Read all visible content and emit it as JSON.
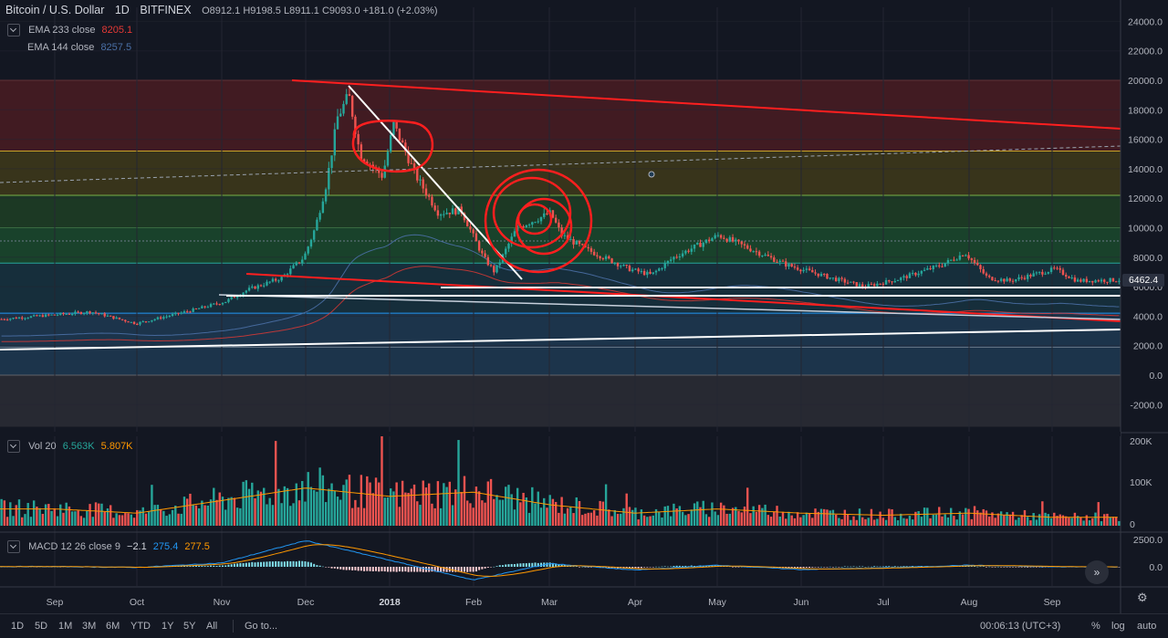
{
  "header": {
    "symbol": "Bitcoin / U.S. Dollar",
    "interval": "1D",
    "exchange": "BITFINEX",
    "ohlc": "O8912.1 H9198.5 L8911.1 C9093.0 +181.0 (+2.03%)"
  },
  "indicators": {
    "ema233": {
      "label": "EMA 233 close",
      "value": "8205.1",
      "color": "#e53935"
    },
    "ema144": {
      "label": "EMA 144 close",
      "value": "8257.5",
      "color": "#4a6fa5"
    },
    "vol": {
      "label": "Vol 20",
      "v1": "6.563K",
      "v2": "5.807K"
    },
    "macd": {
      "label": "MACD 12 26 close 9",
      "v1": "−2.1",
      "v2": "275.4",
      "v3": "277.5"
    }
  },
  "last_price": "6462.4",
  "colors": {
    "up": "#26a69a",
    "down": "#ef5350",
    "bg": "#131722",
    "grid": "#232632",
    "trend_red": "#ff1f1f",
    "trend_white": "#ffffff"
  },
  "price_axis": {
    "ticks": [
      "24000.0",
      "22000.0",
      "20000.0",
      "18000.0",
      "16000.0",
      "14000.0",
      "12000.0",
      "10000.0",
      "8000.0",
      "6000.0",
      "4000.0",
      "2000.0",
      "0.0",
      "-2000.0"
    ]
  },
  "vol_axis": {
    "ticks": [
      "200K",
      "100K",
      "0"
    ]
  },
  "macd_axis": {
    "ticks": [
      "2500.0",
      "0.0"
    ]
  },
  "time_axis": {
    "labels": [
      "Sep",
      "Oct",
      "Nov",
      "Dec",
      "2018",
      "Feb",
      "Mar",
      "Apr",
      "May",
      "Jun",
      "Jul",
      "Aug",
      "Sep"
    ]
  },
  "bottom_bar": {
    "timeframes": [
      "1D",
      "5D",
      "1M",
      "3M",
      "6M",
      "YTD",
      "1Y",
      "5Y",
      "All"
    ],
    "goto": "Go to...",
    "clock": "00:06:13 (UTC+3)",
    "percent": "%",
    "log": "log",
    "auto": "auto"
  },
  "icons": {
    "forward": "fast-forward-icon",
    "settings": "gear-icon",
    "collapse": "chevron-down-icon"
  },
  "chart_data": {
    "type": "candlestick",
    "title": "Bitcoin / U.S. Dollar 1D BITFINEX",
    "ylim": [
      -3500,
      25000
    ],
    "x": [
      "Sep",
      "Oct",
      "Nov",
      "Dec",
      "2018",
      "Feb",
      "Mar",
      "Apr",
      "May",
      "Jun",
      "Jul",
      "Aug",
      "Sep"
    ],
    "close_approx": [
      4500,
      4300,
      6600,
      10500,
      14000,
      9500,
      10800,
      7000,
      9200,
      6500,
      6300,
      7600,
      6462.4
    ],
    "high_approx": [
      4900,
      4500,
      7500,
      19700,
      17200,
      11500,
      11800,
      9000,
      9900,
      7700,
      7400,
      8500,
      7400
    ],
    "low_approx": [
      3000,
      3900,
      5400,
      9800,
      12500,
      6000,
      9000,
      6500,
      8200,
      5800,
      5800,
      6000,
      6100
    ],
    "fib_levels": [
      20000,
      15200,
      12200,
      10000,
      7600,
      4200,
      0
    ],
    "volume_approx": [
      40000,
      30000,
      60000,
      90000,
      70000,
      80000,
      50000,
      30000,
      40000,
      30000,
      25000,
      30000,
      20000
    ],
    "macd_approx": [
      20,
      -60,
      350,
      2400,
      600,
      -1200,
      300,
      -300,
      150,
      -250,
      -100,
      150,
      -2.1
    ],
    "legend_placement": "top-left",
    "grid": true
  }
}
